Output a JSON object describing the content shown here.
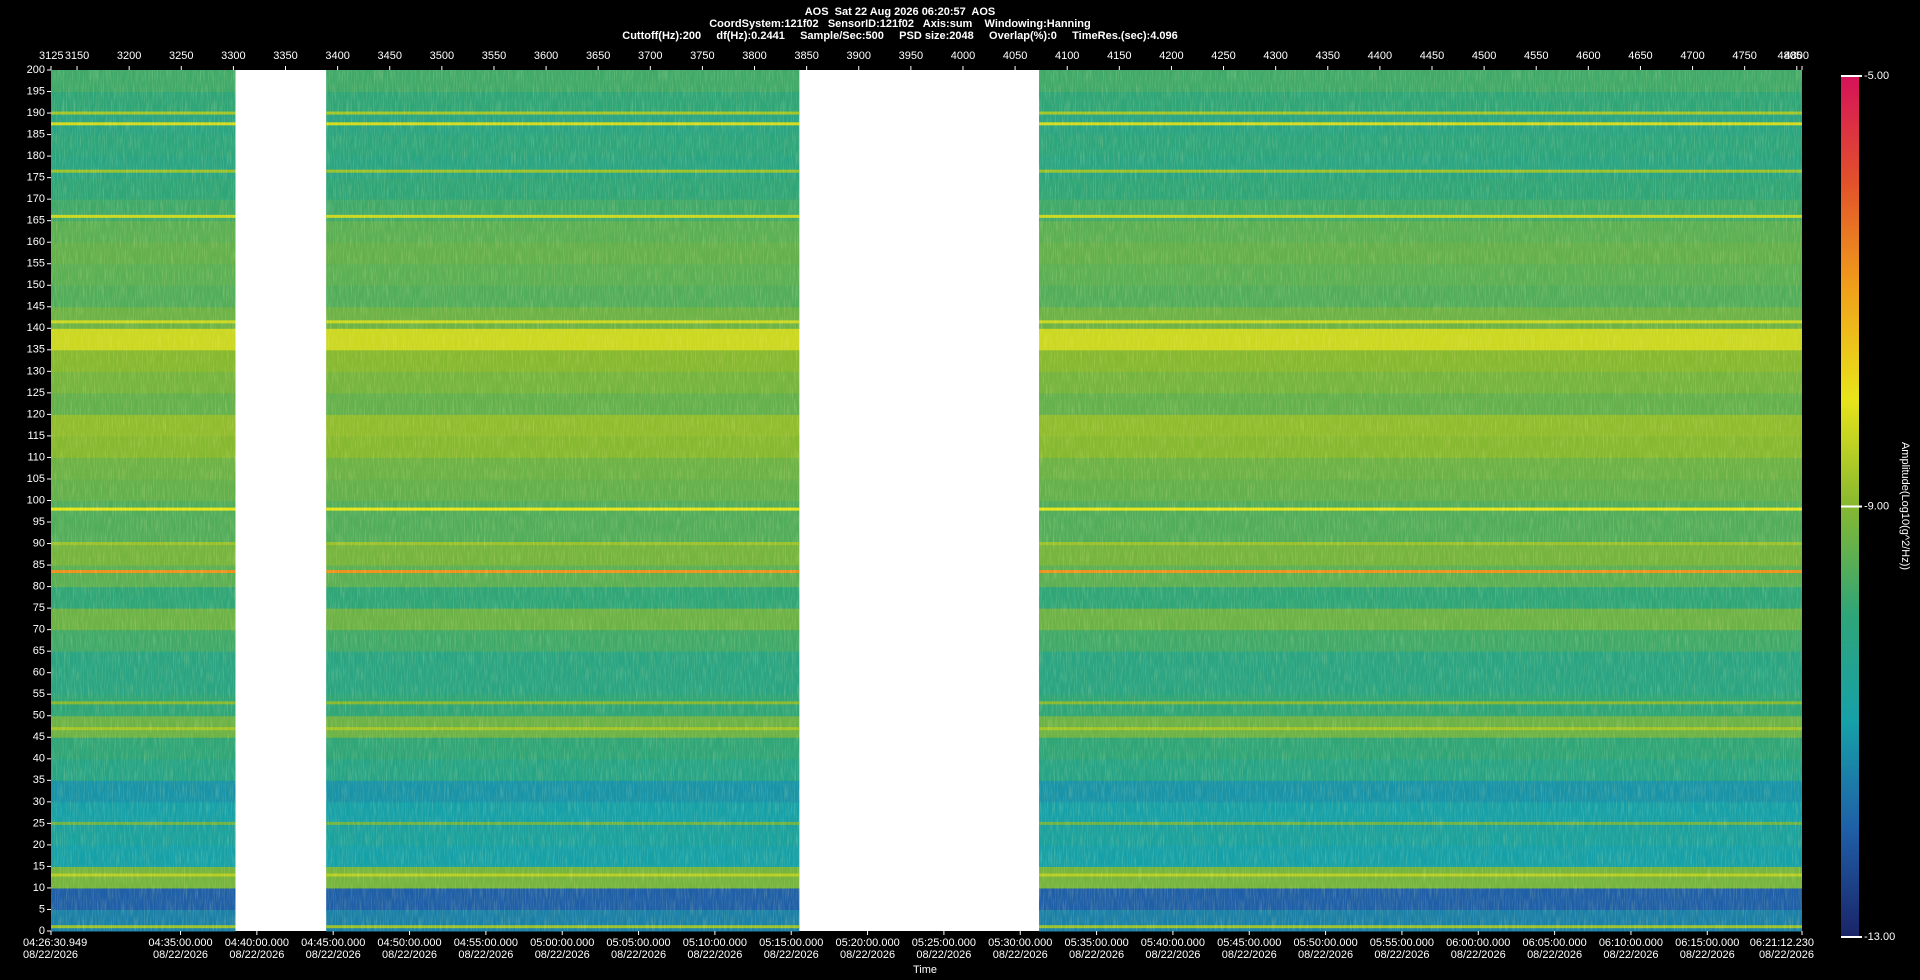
{
  "chart_data": {
    "type": "spectrogram",
    "title": "AOS  Sat 22 Aug 2026 06:20:57  AOS",
    "subtitle": "CoordSystem:121f02   SensorID:121f02   Axis:sum    Windowing:Hanning",
    "settings_line": "Cuttoff(Hz):200     df(Hz):0.2441     Sample/Sec:500     PSD size:2048     Overlap(%):0     TimeRes.(sec):4.096",
    "xlabel": "Time",
    "colorbar_label": "Amplitude(Log10(g^2/Hz))",
    "xlim": [
      3125,
      4805
    ],
    "xticks": [
      3125,
      3150,
      3200,
      3250,
      3300,
      3350,
      3400,
      3450,
      3500,
      3550,
      3600,
      3650,
      3700,
      3750,
      3800,
      3850,
      3900,
      3950,
      4000,
      4050,
      4100,
      4150,
      4200,
      4250,
      4300,
      4350,
      4400,
      4450,
      4500,
      4550,
      4600,
      4650,
      4700,
      4750,
      4800,
      4805
    ],
    "time_ticks": [
      {
        "value": 3125,
        "label": "04:26:30.949"
      },
      {
        "value": 3249.28,
        "label": "04:35:00.000"
      },
      {
        "value": 3322.52,
        "label": "04:40:00.000"
      },
      {
        "value": 3395.76,
        "label": "04:45:00.000"
      },
      {
        "value": 3469.0,
        "label": "04:50:00.000"
      },
      {
        "value": 3542.25,
        "label": "04:55:00.000"
      },
      {
        "value": 3615.49,
        "label": "05:00:00.000"
      },
      {
        "value": 3688.73,
        "label": "05:05:00.000"
      },
      {
        "value": 3761.97,
        "label": "05:10:00.000"
      },
      {
        "value": 3835.21,
        "label": "05:15:00.000"
      },
      {
        "value": 3908.46,
        "label": "05:20:00.000"
      },
      {
        "value": 3981.7,
        "label": "05:25:00.000"
      },
      {
        "value": 4054.94,
        "label": "05:30:00.000"
      },
      {
        "value": 4128.18,
        "label": "05:35:00.000"
      },
      {
        "value": 4201.42,
        "label": "05:40:00.000"
      },
      {
        "value": 4274.67,
        "label": "05:45:00.000"
      },
      {
        "value": 4347.91,
        "label": "05:50:00.000"
      },
      {
        "value": 4421.15,
        "label": "05:55:00.000"
      },
      {
        "value": 4494.39,
        "label": "06:00:00.000"
      },
      {
        "value": 4567.63,
        "label": "06:05:00.000"
      },
      {
        "value": 4640.88,
        "label": "06:10:00.000"
      },
      {
        "value": 4714.12,
        "label": "06:15:00.000"
      },
      {
        "value": 4805,
        "label": "06:21:12.230"
      }
    ],
    "time_tick_dates": [
      "08/22/2026",
      "08/22/2026",
      "08/22/2026",
      "08/22/2026",
      "08/22/2026",
      "08/22/2026",
      "08/22/2026",
      "08/22/2026",
      "08/22/2026",
      "08/22/2026",
      "08/22/2026",
      "08/22/2026",
      "08/22/2026",
      "08/22/2026",
      "08/22/2026",
      "08/22/2026",
      "08/22/2026",
      "08/22/2026",
      "08/22/2026",
      "08/22/2026",
      "08/22/2026",
      "08/22/2026",
      "08/22/2026"
    ],
    "ylim": [
      0,
      200
    ],
    "yticks": [
      0,
      5,
      10,
      15,
      20,
      25,
      30,
      35,
      40,
      45,
      50,
      55,
      60,
      65,
      70,
      75,
      80,
      85,
      90,
      95,
      100,
      105,
      110,
      115,
      120,
      125,
      130,
      135,
      140,
      145,
      150,
      155,
      160,
      165,
      170,
      175,
      180,
      185,
      190,
      195,
      200
    ],
    "segments": [
      [
        3125,
        3302
      ],
      [
        3389,
        3843
      ],
      [
        4073,
        4805
      ]
    ],
    "freq_bins": [
      0,
      5,
      10,
      15,
      20,
      25,
      30,
      35,
      40,
      45,
      50,
      55,
      60,
      65,
      70,
      75,
      80,
      85,
      90,
      95,
      100,
      105,
      110,
      115,
      120,
      125,
      130,
      135,
      140,
      145,
      150,
      155,
      160,
      165,
      170,
      175,
      180,
      185,
      190,
      195,
      200
    ],
    "levels": [
      -11.5,
      -12,
      -9.2,
      -11,
      -10.8,
      -11,
      -11.2,
      -10.3,
      -10,
      -9.3,
      -10,
      -10.2,
      -10.2,
      -9.8,
      -9.3,
      -10,
      -9.5,
      -9.2,
      -9.6,
      -9.6,
      -9.4,
      -9.3,
      -9,
      -8.9,
      -9.4,
      -9.2,
      -9,
      -8.3,
      -9.3,
      -9.6,
      -9.5,
      -9.4,
      -9.5,
      -9.8,
      -10,
      -10.2,
      -10.1,
      -10.2,
      -10,
      -9.8
    ],
    "tones": {
      "freqs": [
        1,
        13,
        25,
        47,
        53,
        83.5,
        90,
        98,
        141.5,
        166,
        176.5,
        187.5,
        190
      ],
      "values": [
        -8.8,
        -8.5,
        -9.3,
        -8.7,
        -9,
        -6.8,
        -8.8,
        -8,
        -8.3,
        -8.3,
        -8.8,
        -8.2,
        -8.7
      ]
    },
    "clim": [
      -13,
      -5
    ],
    "cticks": [
      {
        "value": -5,
        "label": "-5.00"
      },
      {
        "value": -9,
        "label": "-9.00"
      },
      {
        "value": -13,
        "label": "-13.00"
      }
    ],
    "colormap": [
      "#1a2468",
      "#1f5fa8",
      "#16a0a8",
      "#2fa578",
      "#86b830",
      "#e8e41a",
      "#f0a21a",
      "#e2522a",
      "#d6125a"
    ]
  }
}
